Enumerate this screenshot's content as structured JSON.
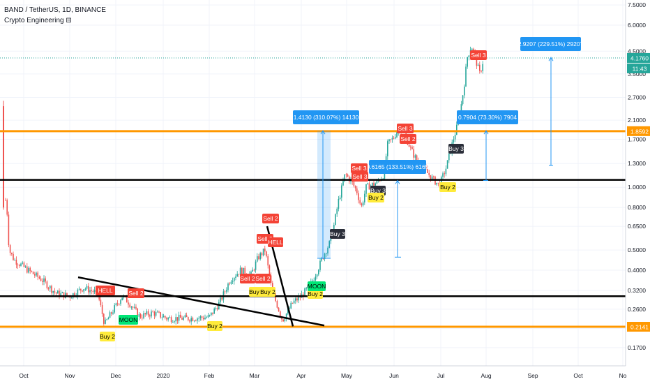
{
  "header": {
    "symbol_line": "BAND / TetherUS, 1D, BINANCE",
    "indicator_line": "Crypto Engineering ⊟"
  },
  "colors": {
    "up": "#26a69a",
    "down": "#ef5350",
    "orange": "#ff9800",
    "blue_tag": "#2196f3",
    "black_line": "#000000",
    "sell_tag": "#f44336",
    "buy_tag": "#ffeb3b",
    "moon_tag": "#00e676",
    "dark_tag": "#2a2e39"
  },
  "chart_data": {
    "type": "candlestick",
    "symbol": "BAND / TetherUS",
    "timeframe": "1D",
    "exchange": "BINANCE",
    "y_scale": "log",
    "y_ticks": [
      "7.5000",
      "6.0000",
      "4.5000",
      "3.5000",
      "2.7000",
      "2.1000",
      "1.7000",
      "1.3000",
      "1.0000",
      "0.8000",
      "0.6500",
      "0.5000",
      "0.4000",
      "0.3200",
      "0.2600",
      "0.2100",
      "0.1700"
    ],
    "x_ticks": [
      "Oct",
      "Nov",
      "Dec",
      "2020",
      "Feb",
      "Mar",
      "Apr",
      "May",
      "Jun",
      "Jul",
      "Aug",
      "Sep",
      "Oct",
      "No"
    ],
    "price_labels": [
      {
        "text": "4.1760",
        "price": 4.176,
        "style": "up"
      },
      {
        "text": "11:43",
        "price": 3.72,
        "style": "up"
      },
      {
        "text": "1.8592",
        "price": 1.8592,
        "style": "orange"
      },
      {
        "text": "0.2141",
        "price": 0.2141,
        "style": "orange"
      }
    ],
    "close_price": 4.176,
    "horizontal_levels": [
      {
        "price": 1.8592,
        "color": "orange"
      },
      {
        "price": 1.085,
        "color": "black"
      },
      {
        "price": 0.3,
        "color": "black"
      },
      {
        "price": 0.2141,
        "color": "orange"
      }
    ],
    "measurements": [
      {
        "label": "1.4130 (310.07%) 14130",
        "from": 0.456,
        "to": 1.869
      },
      {
        "label": "0.6165 (133.51%) 6165",
        "from": 0.462,
        "to": 1.078
      },
      {
        "label": "0.7904 (73.30%) 7904",
        "from": 1.078,
        "to": 1.869
      },
      {
        "label": "2.9207 (229.51%) 29207",
        "from": 1.273,
        "to": 4.2
      }
    ],
    "signals": [
      {
        "text": "Sell 3",
        "kind": "sell",
        "price": 4.55
      },
      {
        "text": "Sell 3",
        "kind": "sell",
        "price": 1.97
      },
      {
        "text": "Sell 2",
        "kind": "sell",
        "price": 1.72
      },
      {
        "text": "Sell 3",
        "kind": "sell",
        "price": 1.24
      },
      {
        "text": "Sell 3",
        "kind": "sell",
        "price": 1.16
      },
      {
        "text": "Sell 2",
        "kind": "sell",
        "price": 0.69
      },
      {
        "text": "Sell 2",
        "kind": "sell",
        "price": 0.535
      },
      {
        "text": "HELL",
        "kind": "sell",
        "price": 0.52
      },
      {
        "text": "Sell 2",
        "kind": "sell",
        "price": 0.363
      },
      {
        "text": "Sell 2",
        "kind": "sell",
        "price": 0.345
      },
      {
        "text": "Sell 2",
        "kind": "sell",
        "price": 0.36
      },
      {
        "text": "HELL",
        "kind": "sell",
        "price": 0.327
      },
      {
        "text": "Sell 2",
        "kind": "sell",
        "price": 0.318
      },
      {
        "text": "Buy 3",
        "kind": "dark",
        "price": 1.47
      },
      {
        "text": "Buy 3",
        "kind": "dark",
        "price": 0.992
      },
      {
        "text": "Buy 3",
        "kind": "dark",
        "price": 0.56
      },
      {
        "text": "Buy 2",
        "kind": "buy",
        "price": 1.008
      },
      {
        "text": "Buy 2",
        "kind": "buy",
        "price": 0.93
      },
      {
        "text": "Buy 2",
        "kind": "buy",
        "price": 0.325
      },
      {
        "text": "Buy 2",
        "kind": "buy",
        "price": 0.325
      },
      {
        "text": "Buy 2",
        "kind": "buy",
        "price": 0.31
      },
      {
        "text": "Buy 2",
        "kind": "buy",
        "price": 0.222
      },
      {
        "text": "Buy 2",
        "kind": "buy",
        "price": 0.188
      },
      {
        "text": "MOON",
        "kind": "moon",
        "price": 0.338
      },
      {
        "text": "MOON",
        "kind": "moon",
        "price": 0.232
      }
    ]
  }
}
